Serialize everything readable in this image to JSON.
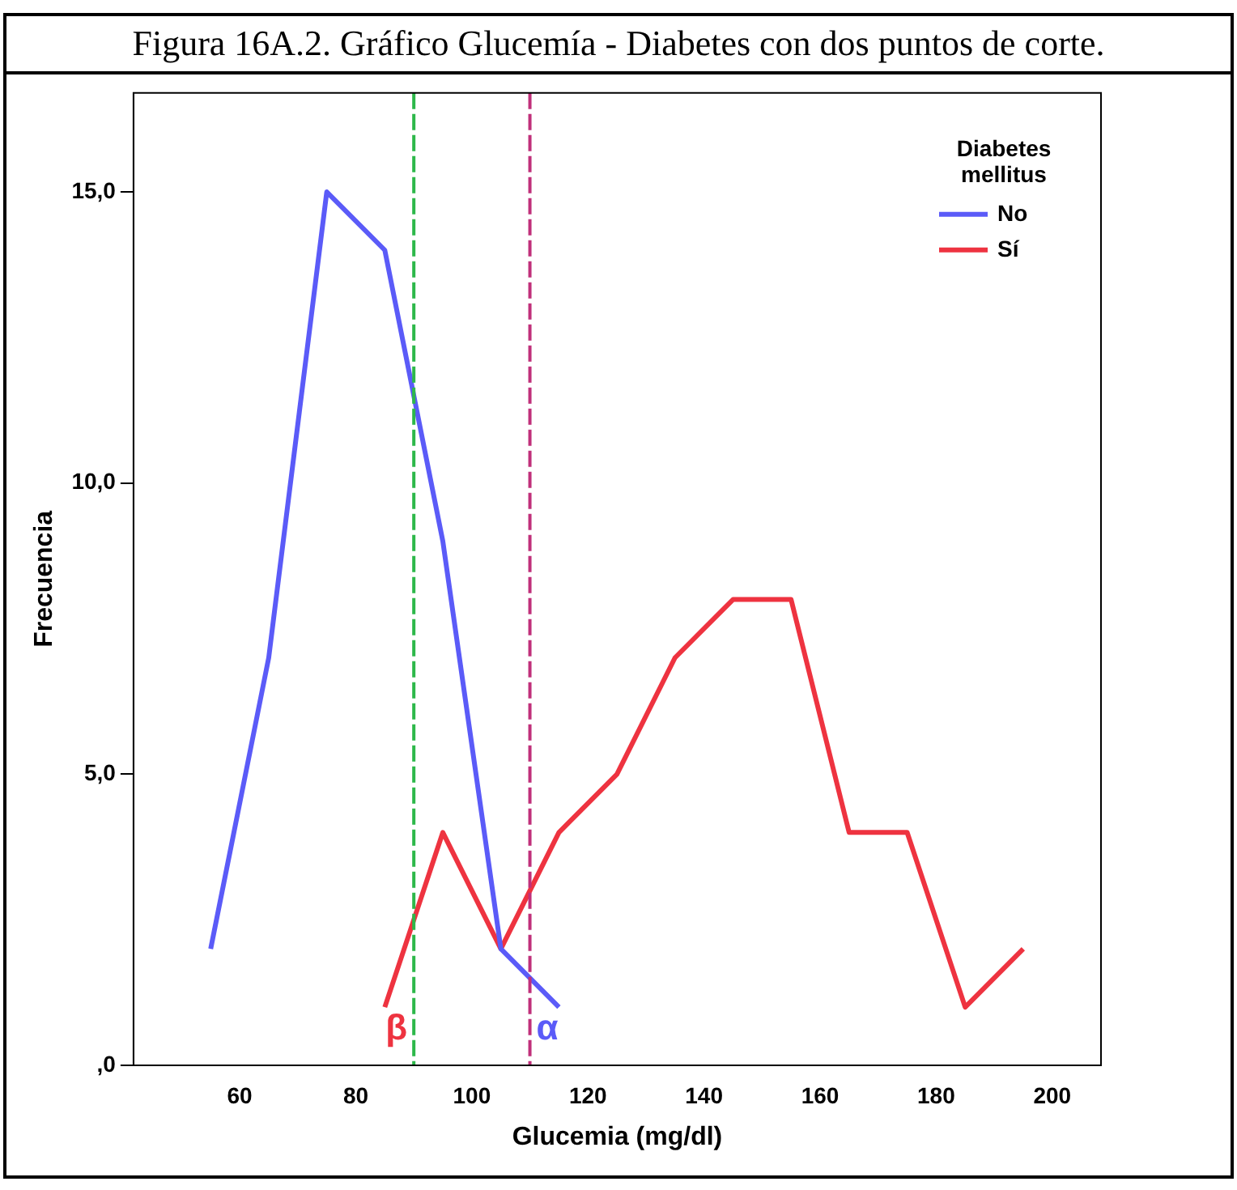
{
  "chart_data": {
    "type": "line",
    "title": "Figura 16A.2. Gráfico Glucemía - Diabetes con dos puntos de corte.",
    "xlabel": "Glucemia (mg/dl)",
    "ylabel": "Frecuencia",
    "legend_title": "Diabetes mellitus",
    "legend": "top right",
    "grid": false,
    "marker": "none",
    "line_style": "solid",
    "xlim": [
      41.7,
      208.4
    ],
    "xticks": [
      60,
      80,
      100,
      120,
      140,
      160,
      180,
      200
    ],
    "ylim": [
      0,
      16.7
    ],
    "yticks": [
      {
        "value": 0,
        "label": ",0"
      },
      {
        "value": 5,
        "label": "5,0"
      },
      {
        "value": 10,
        "label": "10,0"
      },
      {
        "value": 15,
        "label": "15,0"
      }
    ],
    "series": [
      {
        "name": "No",
        "color": "#5b5bf8",
        "x": [
          55,
          65,
          75,
          85,
          95,
          105,
          115
        ],
        "values": [
          2,
          7,
          15,
          14,
          9,
          2,
          1
        ]
      },
      {
        "name": "Sí",
        "color": "#ee3340",
        "x": [
          85,
          95,
          105,
          115,
          125,
          135,
          145,
          155,
          165,
          175,
          185,
          195
        ],
        "values": [
          1,
          4,
          2,
          4,
          5,
          7,
          8,
          8,
          4,
          4,
          1,
          2
        ]
      }
    ],
    "ref_lines": [
      {
        "axis": "x",
        "value": 90,
        "label": "β",
        "color": "#2db84a",
        "line_style": "dashed"
      },
      {
        "axis": "x",
        "value": 110,
        "label": "α",
        "color": "#c0307a",
        "line_style": "dashed"
      }
    ]
  }
}
